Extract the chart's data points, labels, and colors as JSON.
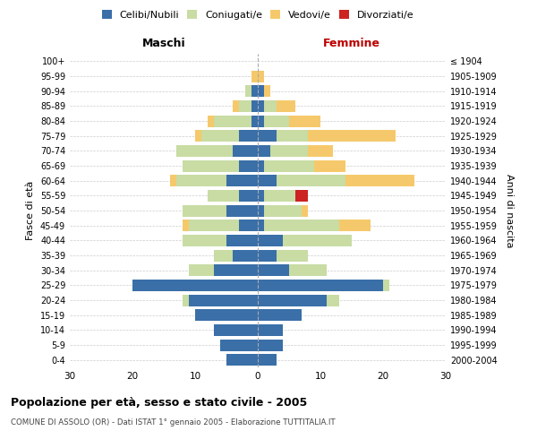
{
  "age_groups": [
    "0-4",
    "5-9",
    "10-14",
    "15-19",
    "20-24",
    "25-29",
    "30-34",
    "35-39",
    "40-44",
    "45-49",
    "50-54",
    "55-59",
    "60-64",
    "65-69",
    "70-74",
    "75-79",
    "80-84",
    "85-89",
    "90-94",
    "95-99",
    "100+"
  ],
  "birth_years": [
    "2000-2004",
    "1995-1999",
    "1990-1994",
    "1985-1989",
    "1980-1984",
    "1975-1979",
    "1970-1974",
    "1965-1969",
    "1960-1964",
    "1955-1959",
    "1950-1954",
    "1945-1949",
    "1940-1944",
    "1935-1939",
    "1930-1934",
    "1925-1929",
    "1920-1924",
    "1915-1919",
    "1910-1914",
    "1905-1909",
    "≤ 1904"
  ],
  "males": {
    "celibi": [
      5,
      6,
      7,
      10,
      11,
      20,
      7,
      4,
      5,
      3,
      5,
      3,
      5,
      3,
      4,
      3,
      1,
      1,
      1,
      0,
      0
    ],
    "coniugati": [
      0,
      0,
      0,
      0,
      1,
      0,
      4,
      3,
      7,
      8,
      7,
      5,
      8,
      9,
      9,
      6,
      6,
      2,
      1,
      0,
      0
    ],
    "vedovi": [
      0,
      0,
      0,
      0,
      0,
      0,
      0,
      0,
      0,
      1,
      0,
      0,
      1,
      0,
      0,
      1,
      1,
      1,
      0,
      1,
      0
    ],
    "divorziati": [
      0,
      0,
      0,
      0,
      0,
      0,
      0,
      0,
      0,
      0,
      0,
      0,
      0,
      0,
      0,
      0,
      0,
      0,
      0,
      0,
      0
    ]
  },
  "females": {
    "nubili": [
      3,
      4,
      4,
      7,
      11,
      20,
      5,
      3,
      4,
      1,
      1,
      1,
      3,
      1,
      2,
      3,
      1,
      1,
      1,
      0,
      0
    ],
    "coniugate": [
      0,
      0,
      0,
      0,
      2,
      1,
      6,
      5,
      11,
      12,
      6,
      5,
      11,
      8,
      6,
      5,
      4,
      2,
      0,
      0,
      0
    ],
    "vedove": [
      0,
      0,
      0,
      0,
      0,
      0,
      0,
      0,
      0,
      5,
      1,
      0,
      11,
      5,
      4,
      14,
      5,
      3,
      1,
      1,
      0
    ],
    "divorziate": [
      0,
      0,
      0,
      0,
      0,
      0,
      0,
      0,
      0,
      0,
      0,
      2,
      0,
      0,
      0,
      0,
      0,
      0,
      0,
      0,
      0
    ]
  },
  "colors": {
    "celibi_nubili": "#3a6fa8",
    "coniugati_e": "#c8dca4",
    "vedovi_e": "#f5c96b",
    "divorziati_e": "#cc2222"
  },
  "title": "Popolazione per età, sesso e stato civile - 2005",
  "subtitle": "COMUNE DI ASSOLO (OR) - Dati ISTAT 1° gennaio 2005 - Elaborazione TUTTITALIA.IT",
  "xlabel_left": "Maschi",
  "xlabel_right": "Femmine",
  "ylabel_left": "Fasce di età",
  "ylabel_right": "Anni di nascita",
  "xlim": 30,
  "background_color": "#ffffff",
  "grid_color": "#cccccc"
}
